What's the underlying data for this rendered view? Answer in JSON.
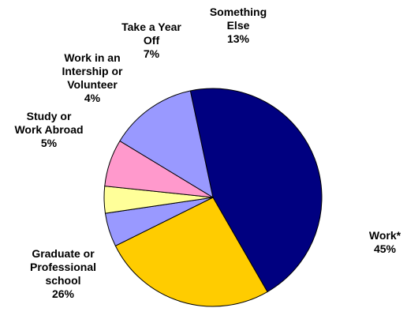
{
  "chart_data": {
    "type": "pie",
    "title": "",
    "legend": "none",
    "start_angle_deg": -12,
    "direction": "clockwise",
    "slices": [
      {
        "lines": [
          "Work*"
        ],
        "value": 45,
        "label": "45%",
        "color": "#000080"
      },
      {
        "lines": [
          "Graduate or",
          "Professional",
          "school"
        ],
        "value": 26,
        "label": "26%",
        "color": "#FFCC00"
      },
      {
        "lines": [
          "Study or",
          "Work Abroad"
        ],
        "value": 5,
        "label": "5%",
        "color": "#9999FF"
      },
      {
        "lines": [
          "Work in an",
          "Intership or",
          "Volunteer"
        ],
        "value": 4,
        "label": "4%",
        "color": "#FFFF99"
      },
      {
        "lines": [
          "Take a Year",
          "Off"
        ],
        "value": 7,
        "label": "7%",
        "color": "#FF99CC"
      },
      {
        "lines": [
          "Something",
          "Else"
        ],
        "value": 13,
        "label": "13%",
        "color": "#9999FF"
      }
    ]
  }
}
